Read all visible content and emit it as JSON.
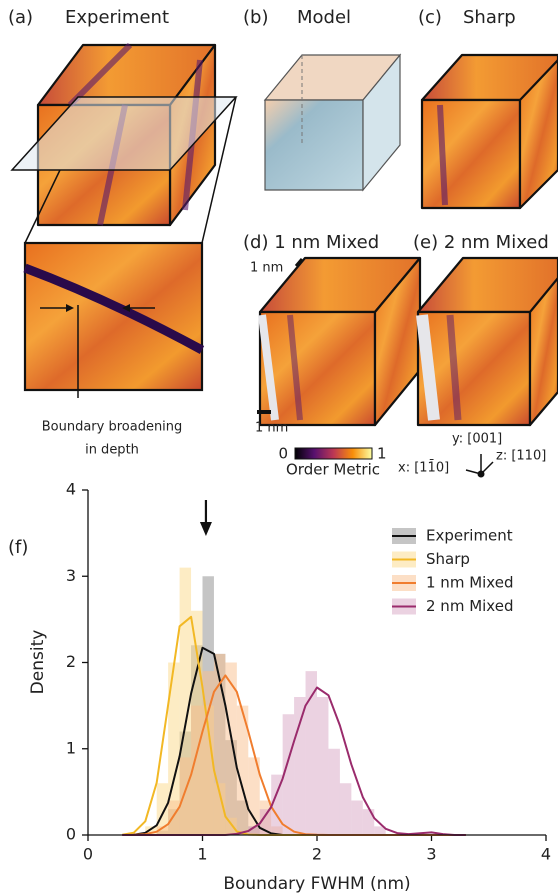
{
  "panels": {
    "a_label": "(a)",
    "a_title": "Experiment",
    "b_label": "(b)",
    "b_title": "Model",
    "c_label": "(c)",
    "c_title": "Sharp",
    "d_title": "(d) 1 nm Mixed",
    "e_title": "(e) 2 nm Mixed",
    "scale_top": "1 nm",
    "scale_bottom": "1 nm",
    "inset_caption": [
      "Boundary broadening",
      "in depth"
    ],
    "colorbar_min": "0",
    "colorbar_max": "1",
    "colorbar_label": "Order Metric",
    "axis_y": "y: [001]",
    "axis_z": "z: [110]",
    "axis_x": "x: [11̄0]",
    "f_label": "(f)"
  },
  "chart_data": {
    "type": "histogram",
    "xlabel": "Boundary FWHM (nm)",
    "ylabel": "Density",
    "xlim": [
      0,
      4
    ],
    "ylim": [
      0,
      4
    ],
    "xticks": [
      0,
      1,
      2,
      3,
      4
    ],
    "yticks": [
      0,
      1,
      2,
      3,
      4
    ],
    "legend": "upper right",
    "arrow_x": 1.03,
    "kde_x": [
      0.3,
      0.4,
      0.5,
      0.6,
      0.7,
      0.8,
      0.9,
      1.0,
      1.1,
      1.2,
      1.3,
      1.4,
      1.5,
      1.6,
      1.7,
      1.8,
      1.9,
      2.0,
      2.1,
      2.2,
      2.3,
      2.4,
      2.5,
      2.6,
      2.7,
      2.8,
      2.9,
      3.0,
      3.1,
      3.2,
      3.3
    ],
    "series": [
      {
        "name": "Experiment",
        "color": "#111111",
        "fill": "#8c8c8c",
        "bins": [
          0.6,
          0.7,
          0.8,
          0.9,
          1.0,
          1.1,
          1.2,
          1.3,
          1.4,
          1.5
        ],
        "counts": [
          0.05,
          0.3,
          1.2,
          2.2,
          3.0,
          2.1,
          1.1,
          0.4,
          0.1
        ],
        "kde": [
          0,
          0.004,
          0.025,
          0.112,
          0.373,
          0.913,
          1.64,
          2.17,
          2.1,
          1.5,
          0.782,
          0.3,
          0.084,
          0.018,
          0,
          0,
          0,
          0,
          0,
          0,
          0,
          0,
          0,
          0,
          0,
          0,
          0,
          0,
          0,
          0,
          0
        ]
      },
      {
        "name": "Sharp",
        "color": "#f2b824",
        "fill": "#fbd98a",
        "bins": [
          0.5,
          0.6,
          0.7,
          0.8,
          0.9,
          1.0,
          1.1,
          1.2,
          1.3,
          1.4
        ],
        "counts": [
          0.1,
          0.6,
          2.0,
          3.1,
          2.6,
          1.5,
          0.6,
          0.2,
          0.05
        ],
        "kde": [
          0.003,
          0.027,
          0.159,
          0.607,
          1.506,
          2.42,
          2.53,
          1.71,
          0.753,
          0.215,
          0.04,
          0.005,
          0,
          0,
          0,
          0,
          0,
          0,
          0,
          0,
          0,
          0,
          0,
          0,
          0,
          0,
          0,
          0,
          0,
          0,
          0
        ]
      },
      {
        "name": "1 nm Mixed",
        "color": "#f07d2e",
        "fill": "#f9bf8d",
        "bins": [
          0.6,
          0.7,
          0.8,
          0.9,
          1.0,
          1.1,
          1.2,
          1.3,
          1.4,
          1.5,
          1.6,
          1.7
        ],
        "counts": [
          0.1,
          0.4,
          0.9,
          1.5,
          1.9,
          2.1,
          2.0,
          1.5,
          0.9,
          0.4,
          0.1
        ],
        "kde": [
          0,
          0.002,
          0.009,
          0.038,
          0.125,
          0.328,
          0.699,
          1.2,
          1.66,
          1.85,
          1.66,
          1.2,
          0.699,
          0.328,
          0.125,
          0.038,
          0.009,
          0.002,
          0,
          0,
          0,
          0,
          0,
          0,
          0,
          0,
          0,
          0,
          0,
          0,
          0
        ]
      },
      {
        "name": "2 nm Mixed",
        "color": "#9a2b6c",
        "fill": "#d7a6c4",
        "bins": [
          1.4,
          1.5,
          1.6,
          1.7,
          1.8,
          1.9,
          2.0,
          2.1,
          2.2,
          2.3,
          2.4,
          2.5,
          2.6
        ],
        "counts": [
          0.1,
          0.3,
          0.7,
          1.4,
          1.6,
          1.9,
          1.6,
          1.0,
          0.6,
          0.4,
          0.3,
          0.1
        ],
        "kde": [
          0,
          0,
          0,
          0,
          0,
          0,
          0,
          0,
          0,
          0,
          0.013,
          0.046,
          0.133,
          0.325,
          0.653,
          1.09,
          1.5,
          1.71,
          1.62,
          1.27,
          0.82,
          0.439,
          0.195,
          0.072,
          0.022,
          0.01,
          0.02,
          0.03,
          0.01,
          0,
          0
        ]
      }
    ]
  }
}
